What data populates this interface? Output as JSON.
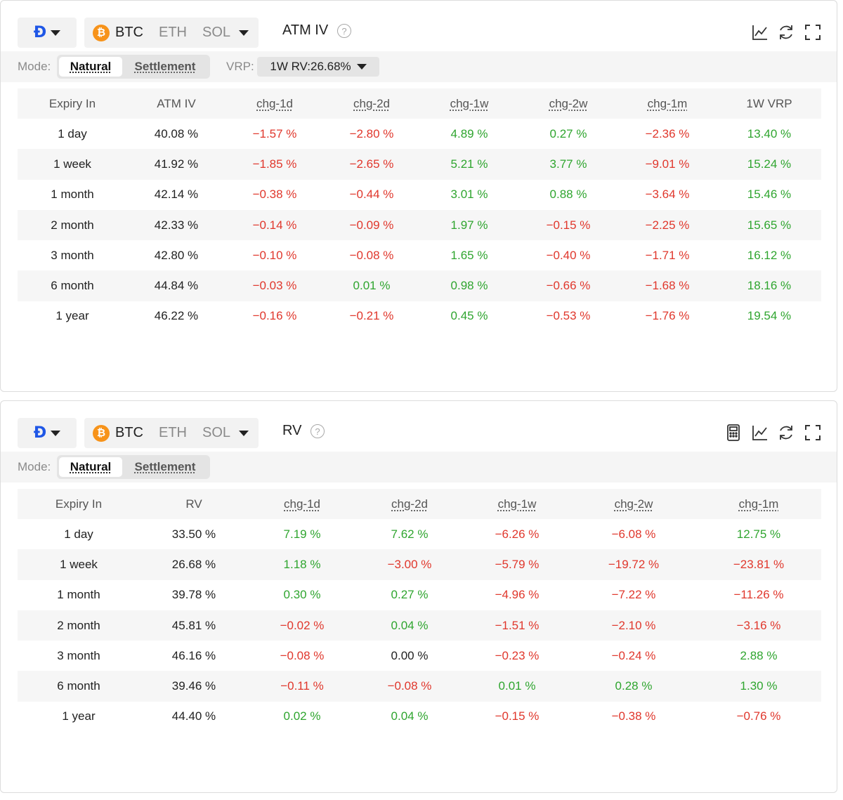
{
  "iv_panel": {
    "exchange_logo": "Ð",
    "coins": [
      "BTC",
      "ETH",
      "SOL"
    ],
    "btc_symbol": "₿",
    "title": "ATM IV",
    "help": "?",
    "mode_label": "Mode:",
    "mode_natural": "Natural",
    "mode_settlement": "Settlement",
    "vrp_label": "VRP:",
    "vrp_value": "1W RV:26.68%",
    "icons": [
      "line-chart-icon",
      "refresh-icon",
      "fullscreen-icon"
    ],
    "headers": [
      "Expiry In",
      "ATM IV",
      "chg-1d",
      "chg-2d",
      "chg-1w",
      "chg-2w",
      "chg-1m",
      "1W VRP"
    ],
    "rows": [
      [
        "1 day",
        "40.08 %",
        "-1.57 %",
        "-2.80 %",
        "4.89 %",
        "0.27 %",
        "-2.36 %",
        "13.40 %"
      ],
      [
        "1 week",
        "41.92 %",
        "-1.85 %",
        "-2.65 %",
        "5.21 %",
        "3.77 %",
        "-9.01 %",
        "15.24 %"
      ],
      [
        "1 month",
        "42.14 %",
        "-0.38 %",
        "-0.44 %",
        "3.01 %",
        "0.88 %",
        "-3.64 %",
        "15.46 %"
      ],
      [
        "2 month",
        "42.33 %",
        "-0.14 %",
        "-0.09 %",
        "1.97 %",
        "-0.15 %",
        "-2.25 %",
        "15.65 %"
      ],
      [
        "3 month",
        "42.80 %",
        "-0.10 %",
        "-0.08 %",
        "1.65 %",
        "-0.40 %",
        "-1.71 %",
        "16.12 %"
      ],
      [
        "6 month",
        "44.84 %",
        "-0.03 %",
        "0.01 %",
        "0.98 %",
        "-0.66 %",
        "-1.68 %",
        "18.16 %"
      ],
      [
        "1 year",
        "46.22 %",
        "-0.16 %",
        "-0.21 %",
        "0.45 %",
        "-0.53 %",
        "-1.76 %",
        "19.54 %"
      ]
    ]
  },
  "rv_panel": {
    "exchange_logo": "Ð",
    "coins": [
      "BTC",
      "ETH",
      "SOL"
    ],
    "btc_symbol": "₿",
    "title": "RV",
    "help": "?",
    "mode_label": "Mode:",
    "mode_natural": "Natural",
    "mode_settlement": "Settlement",
    "icons": [
      "calculator-icon",
      "line-chart-icon",
      "refresh-icon",
      "fullscreen-icon"
    ],
    "headers": [
      "Expiry In",
      "RV",
      "chg-1d",
      "chg-2d",
      "chg-1w",
      "chg-2w",
      "chg-1m"
    ],
    "rows": [
      [
        "1 day",
        "33.50 %",
        "7.19 %",
        "7.62 %",
        "-6.26 %",
        "-6.08 %",
        "12.75 %"
      ],
      [
        "1 week",
        "26.68 %",
        "1.18 %",
        "-3.00 %",
        "-5.79 %",
        "-19.72 %",
        "-23.81 %"
      ],
      [
        "1 month",
        "39.78 %",
        "0.30 %",
        "0.27 %",
        "-4.96 %",
        "-7.22 %",
        "-11.26 %"
      ],
      [
        "2 month",
        "45.81 %",
        "-0.02 %",
        "0.04 %",
        "-1.51 %",
        "-2.10 %",
        "-3.16 %"
      ],
      [
        "3 month",
        "46.16 %",
        "-0.08 %",
        "0.00 %",
        "-0.23 %",
        "-0.24 %",
        "2.88 %"
      ],
      [
        "6 month",
        "39.46 %",
        "-0.11 %",
        "-0.08 %",
        "0.01 %",
        "0.28 %",
        "1.30 %"
      ],
      [
        "1 year",
        "44.40 %",
        "0.02 %",
        "0.04 %",
        "-0.15 %",
        "-0.38 %",
        "-0.76 %"
      ]
    ]
  },
  "colors": {
    "positive": "#2fa52f",
    "negative": "#e0372c",
    "btc": "#f7931a",
    "exchange": "#1f57e6"
  }
}
